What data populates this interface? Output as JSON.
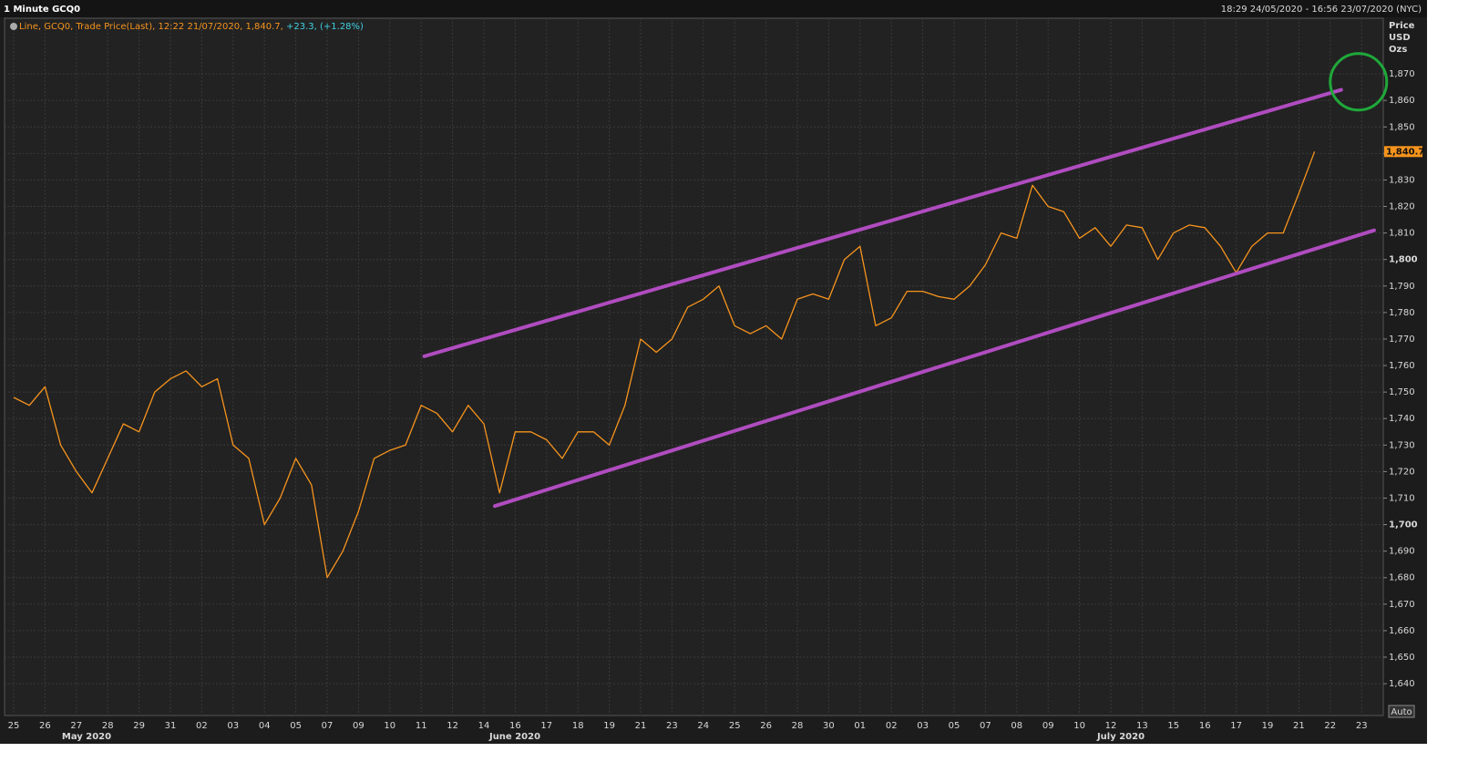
{
  "chart_data": {
    "type": "line",
    "title": "1 Minute GCQ0",
    "legend": [
      "Line, GCQ0, Trade Price(Last), 12:22 21/07/2020, 1,840.7,",
      "+23.3, (+1.28%)"
    ],
    "range_label": "18:29 24/05/2020 - 16:56 23/07/2020 (NYC)",
    "y_axis_label": [
      "Price",
      "USD",
      "Ozs"
    ],
    "auto_button": "Auto",
    "last_label": "1,840.7",
    "months": [
      "May 2020",
      "June 2020",
      "July 2020"
    ],
    "categories": [
      "25",
      null,
      "26",
      null,
      "27",
      null,
      "28",
      null,
      "29",
      null,
      "31",
      null,
      "02",
      null,
      "03",
      null,
      "04",
      null,
      "05",
      null,
      "07",
      null,
      "09",
      null,
      "10",
      null,
      "11",
      null,
      "12",
      null,
      "14",
      null,
      "16",
      null,
      "17",
      null,
      "18",
      null,
      "19",
      null,
      "21",
      null,
      "23",
      null,
      "24",
      null,
      "25",
      null,
      "26",
      null,
      "28",
      null,
      "30",
      null,
      "01",
      null,
      "02",
      null,
      "03",
      null,
      "05",
      null,
      "07",
      null,
      "08",
      null,
      "09",
      null,
      "10",
      null,
      "12",
      null,
      "13",
      null,
      "15",
      null,
      "16",
      null,
      "17",
      null,
      "19",
      null,
      "21",
      null,
      "22",
      null,
      "23",
      null
    ],
    "series": [
      {
        "name": "GCQ0",
        "color": "#f7941d",
        "values": [
          1748,
          1745,
          1752,
          1730,
          1720,
          1712,
          1725,
          1738,
          1735,
          1750,
          1755,
          1758,
          1752,
          1755,
          1730,
          1725,
          1700,
          1710,
          1725,
          1715,
          1680,
          1690,
          1705,
          1725,
          1728,
          1730,
          1745,
          1742,
          1735,
          1745,
          1738,
          1712,
          1735,
          1735,
          1732,
          1725,
          1735,
          1735,
          1730,
          1745,
          1770,
          1765,
          1770,
          1782,
          1785,
          1790,
          1775,
          1772,
          1775,
          1770,
          1785,
          1787,
          1785,
          1800,
          1805,
          1775,
          1778,
          1788,
          1788,
          1786,
          1785,
          1790,
          1798,
          1810,
          1808,
          1828,
          1820,
          1818,
          1808,
          1812,
          1805,
          1813,
          1812,
          1800,
          1810,
          1813,
          1812,
          1805,
          1795,
          1805,
          1810,
          1810,
          1825,
          1840.7,
          null,
          null,
          null,
          null
        ]
      }
    ],
    "channels": [
      {
        "start": [
          26.2,
          1763.5
        ],
        "end": [
          84.7,
          1864
        ]
      },
      {
        "start": [
          30.7,
          1707
        ],
        "end": [
          86.8,
          1811
        ]
      }
    ],
    "channel_color": "#b04cc0",
    "highlight": {
      "center": [
        85.8,
        1867
      ],
      "color": "#1fa83a"
    },
    "ylim": [
      1628,
      1891
    ],
    "yticks": [
      {
        "value": 1640,
        "label": "1,640"
      },
      {
        "value": 1650,
        "label": "1,650"
      },
      {
        "value": 1660,
        "label": "1,660"
      },
      {
        "value": 1670,
        "label": "1,670"
      },
      {
        "value": 1680,
        "label": "1,680"
      },
      {
        "value": 1690,
        "label": "1,690"
      },
      {
        "value": 1700,
        "label": "1,700"
      },
      {
        "value": 1710,
        "label": "1,710"
      },
      {
        "value": 1720,
        "label": "1,720"
      },
      {
        "value": 1730,
        "label": "1,730"
      },
      {
        "value": 1740,
        "label": "1,740"
      },
      {
        "value": 1750,
        "label": "1,750"
      },
      {
        "value": 1760,
        "label": "1,760"
      },
      {
        "value": 1770,
        "label": "1,770"
      },
      {
        "value": 1780,
        "label": "1,780"
      },
      {
        "value": 1790,
        "label": "1,790"
      },
      {
        "value": 1800,
        "label": "1,800"
      },
      {
        "value": 1810,
        "label": "1,810"
      },
      {
        "value": 1820,
        "label": "1,820"
      },
      {
        "value": 1830,
        "label": "1,830"
      },
      {
        "value": 1840,
        "label": "1,840"
      },
      {
        "value": 1850,
        "label": "1,850"
      },
      {
        "value": 1860,
        "label": "1,860"
      },
      {
        "value": 1870,
        "label": "1,870"
      }
    ],
    "grid": true
  }
}
